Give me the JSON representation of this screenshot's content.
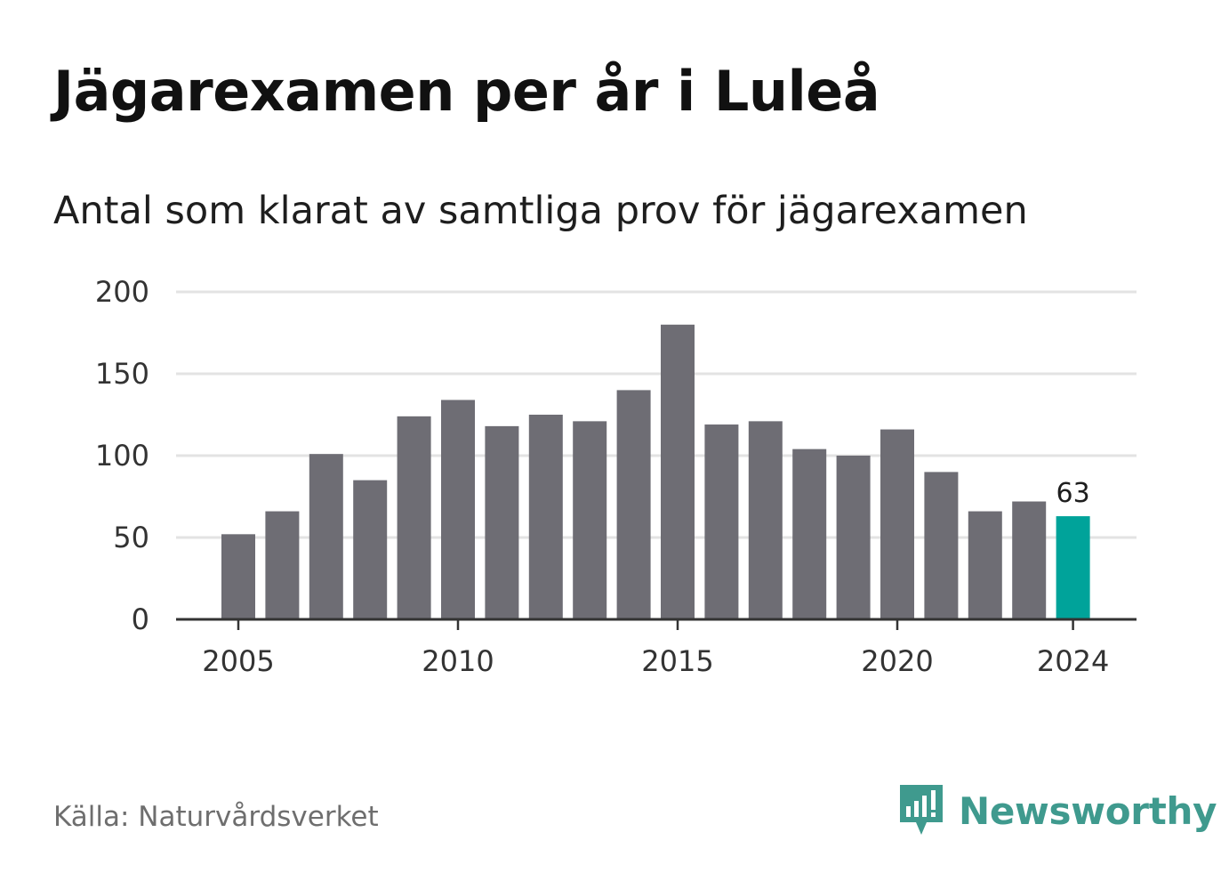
{
  "header": {
    "title": "Jägarexamen per år i Luleå",
    "subtitle": "Antal som klarat av samtliga prov för jägarexamen"
  },
  "footer": {
    "source": "Källa: Naturvårdsverket",
    "brand": "Newsworthy"
  },
  "colors": {
    "bar": "#6e6d74",
    "highlight": "#00a39a",
    "grid": "#e3e3e3",
    "axis": "#333333",
    "brand": "#3f9a8e"
  },
  "chart_data": {
    "type": "bar",
    "title": "Jägarexamen per år i Luleå",
    "subtitle": "Antal som klarat av samtliga prov för jägarexamen",
    "x": [
      2005,
      2006,
      2007,
      2008,
      2009,
      2010,
      2011,
      2012,
      2013,
      2014,
      2015,
      2016,
      2017,
      2018,
      2019,
      2020,
      2021,
      2022,
      2023,
      2024
    ],
    "values": [
      52,
      66,
      101,
      85,
      124,
      134,
      118,
      125,
      121,
      140,
      180,
      119,
      121,
      104,
      100,
      116,
      90,
      66,
      72,
      63
    ],
    "highlight_index": 19,
    "value_labels": [
      {
        "index": 19,
        "text": "63"
      }
    ],
    "x_ticks": [
      "2005",
      "2010",
      "2015",
      "2020",
      "2024"
    ],
    "y_ticks": [
      "0",
      "50",
      "100",
      "150",
      "200"
    ],
    "ylim": [
      0,
      200
    ],
    "grid": true
  }
}
